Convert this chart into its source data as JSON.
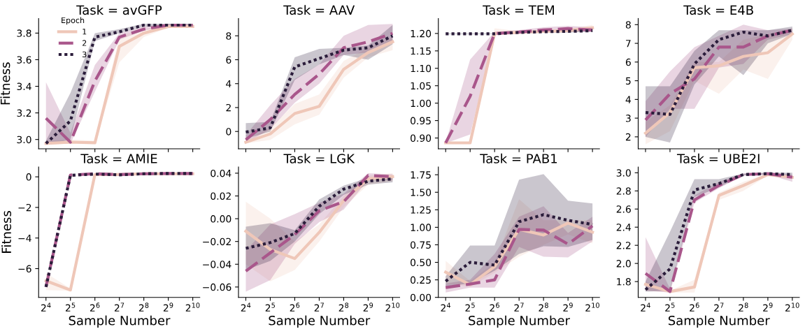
{
  "chart_data": [
    {
      "type": "line",
      "title": "Task = avGFP",
      "ylabel": "Fitness",
      "x": [
        16,
        32,
        64,
        128,
        256,
        512,
        1024
      ],
      "log": "x",
      "xlim": [
        13,
        1250
      ],
      "xticks": [
        {
          "value": 16,
          "label": null
        },
        {
          "value": 32,
          "label": null
        },
        {
          "value": 64,
          "label": null
        },
        {
          "value": 128,
          "label": null
        },
        {
          "value": 256,
          "label": null
        },
        {
          "value": 512,
          "label": null
        },
        {
          "value": 1024,
          "label": null
        }
      ],
      "ylim": [
        2.93,
        3.91
      ],
      "yticks": [
        {
          "value": 3.0,
          "label": "3.0"
        },
        {
          "value": 3.2,
          "label": "3.2"
        },
        {
          "value": 3.4,
          "label": "3.4"
        },
        {
          "value": 3.6,
          "label": "3.6"
        },
        {
          "value": 3.8,
          "label": "3.8"
        }
      ],
      "tick_labels": "y",
      "grid": false,
      "legend": "top left",
      "legend_title": "Epoch",
      "series": [
        {
          "name": "1",
          "color": "#efc7b8",
          "line_style": "solid",
          "values": [
            2.97,
            2.98,
            2.975,
            3.7,
            3.8,
            3.85,
            3.85
          ],
          "lower": [
            2.96,
            2.97,
            2.97,
            3.58,
            3.77,
            3.84,
            3.84
          ],
          "upper": [
            2.99,
            3.0,
            2.99,
            3.78,
            3.83,
            3.86,
            3.86
          ]
        },
        {
          "name": "2",
          "color": "#a9568b",
          "line_style": "dashed",
          "values": [
            3.16,
            2.98,
            3.44,
            3.77,
            3.83,
            3.86,
            3.86
          ],
          "lower": [
            2.97,
            2.97,
            3.36,
            3.75,
            3.82,
            3.85,
            3.85
          ],
          "upper": [
            3.43,
            3.05,
            3.56,
            3.8,
            3.85,
            3.87,
            3.87
          ]
        },
        {
          "name": "3",
          "color": "#2b1d3b",
          "line_style": "dotted",
          "values": [
            2.97,
            3.14,
            3.77,
            3.81,
            3.86,
            3.86,
            3.86
          ],
          "lower": [
            2.96,
            3.0,
            3.74,
            3.8,
            3.85,
            3.85,
            3.85
          ],
          "upper": [
            2.99,
            3.35,
            3.8,
            3.83,
            3.87,
            3.87,
            3.87
          ]
        }
      ]
    },
    {
      "type": "line",
      "title": "Task = AAV",
      "x": [
        16,
        32,
        64,
        128,
        256,
        512,
        1024
      ],
      "log": "x",
      "xlim": [
        13,
        1250
      ],
      "xticks": [
        {
          "value": 16,
          "label": null
        },
        {
          "value": 32,
          "label": null
        },
        {
          "value": 64,
          "label": null
        },
        {
          "value": 128,
          "label": null
        },
        {
          "value": 256,
          "label": null
        },
        {
          "value": 512,
          "label": null
        },
        {
          "value": 1024,
          "label": null
        }
      ],
      "ylim": [
        -1.45,
        9.45
      ],
      "yticks": [
        0,
        2,
        4,
        6,
        8
      ],
      "tick_labels": "y",
      "grid": false,
      "series": [
        {
          "color": "#efc7b8",
          "line_style": "solid",
          "values": [
            -0.9,
            -0.2,
            1.5,
            2.1,
            5.2,
            6.6,
            7.5
          ],
          "lower": [
            -1.0,
            -0.7,
            0.6,
            1.4,
            4.5,
            6.2,
            6.8
          ],
          "upper": [
            -0.7,
            0.3,
            2.3,
            3.1,
            5.9,
            7.0,
            7.9
          ]
        },
        {
          "color": "#a9568b",
          "line_style": "dashed",
          "values": [
            -0.7,
            1.0,
            3.1,
            4.8,
            7.0,
            7.5,
            8.2
          ],
          "lower": [
            -1.0,
            0.2,
            2.4,
            4.0,
            6.4,
            6.6,
            7.4
          ],
          "upper": [
            -0.3,
            2.2,
            4.4,
            5.6,
            8.0,
            8.9,
            9.0
          ]
        },
        {
          "color": "#2b1d3b",
          "line_style": "dotted",
          "values": [
            -0.05,
            0.3,
            5.4,
            6.1,
            6.8,
            7.0,
            8.0
          ],
          "lower": [
            -0.6,
            0.0,
            4.3,
            5.6,
            6.4,
            6.0,
            7.3
          ],
          "upper": [
            0.7,
            0.8,
            6.2,
            6.9,
            7.0,
            7.2,
            8.9
          ]
        }
      ]
    },
    {
      "type": "line",
      "title": "Task = TEM",
      "x": [
        16,
        32,
        64,
        128,
        256,
        512,
        1024
      ],
      "log": "x",
      "xlim": [
        13,
        1250
      ],
      "xticks": [
        {
          "value": 16,
          "label": null
        },
        {
          "value": 32,
          "label": null
        },
        {
          "value": 64,
          "label": null
        },
        {
          "value": 128,
          "label": null
        },
        {
          "value": 256,
          "label": null
        },
        {
          "value": 512,
          "label": null
        },
        {
          "value": 1024,
          "label": null
        }
      ],
      "ylim": [
        0.869,
        1.243
      ],
      "yticks": [
        {
          "value": 0.9,
          "label": "0.90"
        },
        {
          "value": 0.95,
          "label": "0.95"
        },
        {
          "value": 1.0,
          "label": "1.00"
        },
        {
          "value": 1.05,
          "label": "1.05"
        },
        {
          "value": 1.1,
          "label": "1.10"
        },
        {
          "value": 1.15,
          "label": "1.15"
        },
        {
          "value": 1.2,
          "label": "1.20"
        }
      ],
      "tick_labels": "y",
      "grid": false,
      "series": [
        {
          "color": "#efc7b8",
          "line_style": "solid",
          "values": [
            0.886,
            0.886,
            1.2,
            1.203,
            1.206,
            1.208,
            1.216
          ],
          "lower": [
            0.885,
            0.885,
            1.195,
            1.2,
            1.202,
            1.204,
            1.208
          ],
          "upper": [
            0.888,
            0.888,
            1.215,
            1.207,
            1.21,
            1.213,
            1.225
          ]
        },
        {
          "color": "#a9568b",
          "line_style": "dashed",
          "values": [
            0.886,
            1.02,
            1.2,
            1.204,
            1.21,
            1.214,
            1.21
          ],
          "lower": [
            0.885,
            0.91,
            1.195,
            1.2,
            1.205,
            1.205,
            1.205
          ],
          "upper": [
            0.888,
            1.125,
            1.205,
            1.21,
            1.218,
            1.222,
            1.218
          ]
        },
        {
          "color": "#2b1d3b",
          "line_style": "dotted",
          "values": [
            1.199,
            1.199,
            1.199,
            1.203,
            1.205,
            1.206,
            1.208
          ],
          "lower": [
            1.198,
            1.198,
            1.198,
            1.2,
            1.202,
            1.203,
            1.205
          ],
          "upper": [
            1.2,
            1.2,
            1.2,
            1.206,
            1.208,
            1.209,
            1.212
          ]
        }
      ]
    },
    {
      "type": "line",
      "title": "Task = E4B",
      "x": [
        16,
        32,
        64,
        128,
        256,
        512,
        1024
      ],
      "log": "x",
      "xlim": [
        13,
        1250
      ],
      "xticks": [
        {
          "value": 16,
          "label": null
        },
        {
          "value": 32,
          "label": null
        },
        {
          "value": 64,
          "label": null
        },
        {
          "value": 128,
          "label": null
        },
        {
          "value": 256,
          "label": null
        },
        {
          "value": 512,
          "label": null
        },
        {
          "value": 1024,
          "label": null
        }
      ],
      "ylim": [
        1.36,
        8.33
      ],
      "yticks": [
        2,
        3,
        4,
        5,
        6,
        7,
        8
      ],
      "tick_labels": "y",
      "grid": false,
      "series": [
        {
          "color": "#efc7b8",
          "line_style": "solid",
          "values": [
            2.2,
            3.3,
            5.7,
            5.8,
            6.3,
            6.5,
            7.5
          ],
          "lower": [
            1.6,
            2.3,
            5.0,
            4.3,
            5.6,
            5.1,
            7.2
          ],
          "upper": [
            2.8,
            3.7,
            6.0,
            6.0,
            7.2,
            7.5,
            7.8
          ]
        },
        {
          "color": "#a9568b",
          "line_style": "dashed",
          "values": [
            2.9,
            4.3,
            5.1,
            6.8,
            6.8,
            7.4,
            7.7
          ],
          "lower": [
            2.0,
            3.5,
            3.5,
            5.7,
            5.9,
            7.2,
            7.5
          ],
          "upper": [
            3.9,
            5.5,
            6.8,
            7.4,
            8.0,
            7.7,
            7.8
          ]
        },
        {
          "color": "#2b1d3b",
          "line_style": "dotted",
          "values": [
            3.3,
            3.2,
            5.9,
            7.2,
            7.6,
            7.4,
            7.7
          ],
          "lower": [
            2.0,
            1.7,
            4.8,
            6.3,
            5.3,
            7.0,
            7.5
          ],
          "upper": [
            4.7,
            4.7,
            6.6,
            7.7,
            7.7,
            7.7,
            7.9
          ]
        }
      ]
    },
    {
      "type": "line",
      "title": "Task = AMIE",
      "xlabel": "Sample Number",
      "ylabel": "Fitness",
      "x": [
        16,
        32,
        64,
        128,
        256,
        512,
        1024
      ],
      "log": "x",
      "xlim": [
        13,
        1250
      ],
      "xticks": [
        {
          "value": 16,
          "label": "2$^{4}$"
        },
        {
          "value": 32,
          "label": "2$^{5}$"
        },
        {
          "value": 64,
          "label": "2$^{6}$"
        },
        {
          "value": 128,
          "label": "2$^{7}$"
        },
        {
          "value": 256,
          "label": "2$^{8}$"
        },
        {
          "value": 512,
          "label": "2$^{9}$"
        },
        {
          "value": 1024,
          "label": "2$^{10}$"
        }
      ],
      "ylim": [
        -7.88,
        0.64
      ],
      "yticks": [
        {
          "value": -6,
          "label": "−6"
        },
        {
          "value": -4,
          "label": "−4"
        },
        {
          "value": -2,
          "label": "−2"
        },
        0
      ],
      "grid": false,
      "series": [
        {
          "color": "#efc7b8",
          "line_style": "solid",
          "values": [
            -6.8,
            -7.4,
            0.15,
            0.15,
            0.2,
            0.2,
            0.2
          ],
          "lower": [
            -7.4,
            -7.45,
            0.1,
            0.1,
            0.15,
            0.15,
            0.15
          ],
          "upper": [
            -6.3,
            -7.3,
            0.2,
            0.2,
            0.25,
            0.25,
            0.25
          ]
        },
        {
          "color": "#a9568b",
          "line_style": "dashed",
          "values": [
            -7.2,
            0.12,
            0.2,
            0.15,
            0.2,
            0.22,
            0.22
          ]
        },
        {
          "color": "#2b1d3b",
          "line_style": "dotted",
          "values": [
            -7.2,
            0.1,
            0.18,
            0.13,
            0.2,
            0.22,
            0.22
          ]
        }
      ]
    },
    {
      "type": "line",
      "title": "Task = LGK",
      "xlabel": "Sample Number",
      "x": [
        16,
        32,
        64,
        128,
        256,
        512,
        1024
      ],
      "log": "x",
      "xlim": [
        13,
        1250
      ],
      "xticks": [
        {
          "value": 16,
          "label": "2$^{4}$"
        },
        {
          "value": 32,
          "label": "2$^{5}$"
        },
        {
          "value": 64,
          "label": "2$^{6}$"
        },
        {
          "value": 128,
          "label": "2$^{7}$"
        },
        {
          "value": 256,
          "label": "2$^{8}$"
        },
        {
          "value": 512,
          "label": "2$^{9}$"
        },
        {
          "value": 1024,
          "label": "2$^{10}$"
        }
      ],
      "ylim": [
        -0.0691,
        0.0454
      ],
      "yticks": [
        {
          "value": -0.06,
          "label": "−0.06"
        },
        {
          "value": -0.04,
          "label": "−0.04"
        },
        {
          "value": -0.02,
          "label": "−0.02"
        },
        {
          "value": 0,
          "label": "0.00"
        },
        {
          "value": 0.02,
          "label": "0.02"
        },
        {
          "value": 0.04,
          "label": "0.04"
        }
      ],
      "grid": false,
      "series": [
        {
          "color": "#efc7b8",
          "line_style": "solid",
          "values": [
            -0.011,
            -0.027,
            -0.035,
            -0.012,
            0.016,
            0.035,
            0.037
          ],
          "lower": [
            -0.04,
            -0.055,
            -0.045,
            -0.02,
            0.01,
            0.03,
            0.033
          ],
          "upper": [
            0.015,
            0.0,
            -0.02,
            -0.005,
            0.02,
            0.038,
            0.04
          ]
        },
        {
          "color": "#a9568b",
          "line_style": "dashed",
          "values": [
            -0.046,
            -0.03,
            -0.014,
            0.007,
            0.015,
            0.038,
            0.037
          ],
          "lower": [
            -0.064,
            -0.054,
            -0.022,
            -0.003,
            0.008,
            0.034,
            0.034
          ],
          "upper": [
            -0.028,
            -0.005,
            0.004,
            0.014,
            0.022,
            0.04,
            0.039
          ]
        },
        {
          "color": "#2b1d3b",
          "line_style": "dotted",
          "values": [
            -0.026,
            -0.021,
            -0.013,
            0.011,
            0.026,
            0.033,
            0.035
          ],
          "lower": [
            -0.045,
            -0.037,
            -0.02,
            0.004,
            0.021,
            0.03,
            0.032
          ],
          "upper": [
            -0.007,
            -0.004,
            -0.01,
            0.017,
            0.029,
            0.036,
            0.037
          ]
        }
      ]
    },
    {
      "type": "line",
      "title": "Task = PAB1",
      "xlabel": "Sample Number",
      "x": [
        16,
        32,
        64,
        128,
        256,
        512,
        1024
      ],
      "log": "x",
      "xlim": [
        13,
        1250
      ],
      "xticks": [
        {
          "value": 16,
          "label": "2$^{4}$"
        },
        {
          "value": 32,
          "label": "2$^{5}$"
        },
        {
          "value": 64,
          "label": "2$^{6}$"
        },
        {
          "value": 128,
          "label": "2$^{7}$"
        },
        {
          "value": 256,
          "label": "2$^{8}$"
        },
        {
          "value": 512,
          "label": "2$^{9}$"
        },
        {
          "value": 1024,
          "label": "2$^{10}$"
        }
      ],
      "ylim": [
        0,
        1.86
      ],
      "yticks": [
        {
          "value": 0,
          "label": "0.00"
        },
        {
          "value": 0.25,
          "label": "0.25"
        },
        {
          "value": 0.5,
          "label": "0.50"
        },
        {
          "value": 0.75,
          "label": "0.75"
        },
        {
          "value": 1.0,
          "label": "1.00"
        },
        {
          "value": 1.25,
          "label": "1.25"
        },
        {
          "value": 1.5,
          "label": "1.50"
        },
        {
          "value": 1.75,
          "label": "1.75"
        }
      ],
      "grid": false,
      "series": [
        {
          "color": "#efc7b8",
          "line_style": "solid",
          "values": [
            0.36,
            0.18,
            0.44,
            0.97,
            0.89,
            1.06,
            0.93
          ],
          "lower": [
            0.2,
            0.15,
            0.35,
            0.58,
            0.75,
            0.9,
            0.77
          ],
          "upper": [
            0.52,
            0.23,
            0.5,
            1.4,
            1.1,
            1.1,
            1.1
          ]
        },
        {
          "color": "#a9568b",
          "line_style": "dashed",
          "values": [
            0.14,
            0.19,
            0.25,
            0.97,
            0.96,
            0.76,
            1.02
          ],
          "lower": [
            0.07,
            0.14,
            0.14,
            0.72,
            0.58,
            0.57,
            0.8
          ],
          "upper": [
            0.2,
            0.25,
            0.62,
            1.15,
            1.3,
            0.92,
            1.15
          ]
        },
        {
          "color": "#2b1d3b",
          "line_style": "dotted",
          "values": [
            0.23,
            0.5,
            0.46,
            1.08,
            1.18,
            1.1,
            1.04
          ],
          "lower": [
            0.16,
            0.2,
            0.38,
            0.62,
            0.73,
            0.72,
            0.82
          ],
          "upper": [
            0.3,
            0.74,
            0.74,
            1.68,
            1.76,
            1.38,
            1.34
          ]
        }
      ]
    },
    {
      "type": "line",
      "title": "Task = UBE2I",
      "xlabel": "Sample Number",
      "x": [
        16,
        32,
        64,
        128,
        256,
        512,
        1024
      ],
      "log": "x",
      "xlim": [
        13,
        1250
      ],
      "xticks": [
        {
          "value": 16,
          "label": "2$^{4}$"
        },
        {
          "value": 32,
          "label": "2$^{5}$"
        },
        {
          "value": 64,
          "label": "2$^{6}$"
        },
        {
          "value": 128,
          "label": "2$^{7}$"
        },
        {
          "value": 256,
          "label": "2$^{8}$"
        },
        {
          "value": 512,
          "label": "2$^{9}$"
        },
        {
          "value": 1024,
          "label": "2$^{10}$"
        }
      ],
      "ylim": [
        1.626,
        3.063
      ],
      "yticks": [
        {
          "value": 1.8,
          "label": "1.8"
        },
        {
          "value": 2.0,
          "label": "2.0"
        },
        {
          "value": 2.2,
          "label": "2.2"
        },
        {
          "value": 2.4,
          "label": "2.4"
        },
        {
          "value": 2.6,
          "label": "2.6"
        },
        {
          "value": 2.8,
          "label": "2.8"
        },
        {
          "value": 3.0,
          "label": "3.0"
        }
      ],
      "grid": false,
      "series": [
        {
          "color": "#efc7b8",
          "line_style": "solid",
          "values": [
            1.77,
            1.69,
            1.74,
            2.75,
            2.86,
            2.98,
            2.95
          ],
          "lower": [
            1.7,
            1.68,
            1.68,
            2.7,
            2.8,
            2.97,
            2.93
          ],
          "upper": [
            1.8,
            1.7,
            1.82,
            2.78,
            2.9,
            2.99,
            2.97
          ]
        },
        {
          "color": "#a9568b",
          "line_style": "dashed",
          "values": [
            1.89,
            1.69,
            2.7,
            2.86,
            2.98,
            2.99,
            2.95
          ],
          "lower": [
            1.7,
            1.68,
            2.67,
            2.83,
            2.97,
            2.98,
            2.9
          ],
          "upper": [
            2.29,
            1.72,
            2.75,
            2.9,
            2.99,
            3.0,
            2.98
          ]
        },
        {
          "color": "#2b1d3b",
          "line_style": "dotted",
          "values": [
            1.71,
            1.94,
            2.81,
            2.88,
            2.98,
            2.99,
            2.98
          ],
          "lower": [
            1.69,
            1.7,
            2.73,
            2.84,
            2.97,
            2.98,
            2.96
          ],
          "upper": [
            1.8,
            2.35,
            2.93,
            2.93,
            2.99,
            3.0,
            3.0
          ]
        }
      ]
    }
  ]
}
